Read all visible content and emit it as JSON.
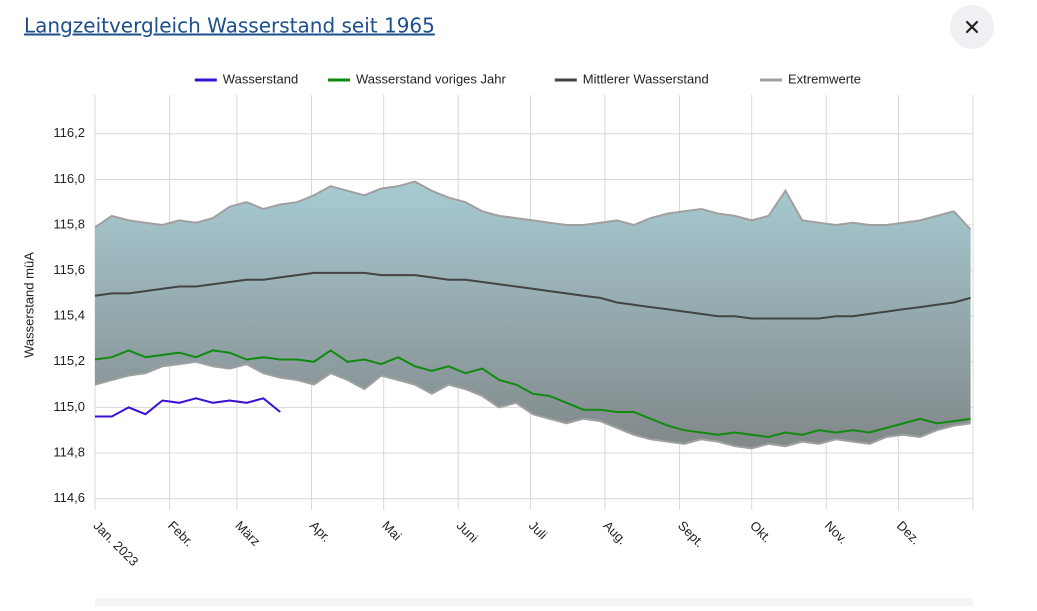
{
  "header": {
    "title": "Langzeitvergleich Wasserstand seit 1965"
  },
  "chart_data": {
    "type": "line",
    "ylabel": "Wasserstand müA",
    "ylim": [
      114.55,
      116.37
    ],
    "yticks": [
      {
        "value": 114.6,
        "label": "114,6"
      },
      {
        "value": 114.8,
        "label": "114,8"
      },
      {
        "value": 115.0,
        "label": "115,0"
      },
      {
        "value": 115.2,
        "label": "115,2"
      },
      {
        "value": 115.4,
        "label": "115,4"
      },
      {
        "value": 115.6,
        "label": "115,6"
      },
      {
        "value": 115.8,
        "label": "115,8"
      },
      {
        "value": 116.0,
        "label": "116,0"
      },
      {
        "value": 116.2,
        "label": "116,2"
      }
    ],
    "xlim": [
      0,
      365
    ],
    "xticks": [
      {
        "value": 0,
        "label": "Jan. 2023"
      },
      {
        "value": 31,
        "label": "Febr."
      },
      {
        "value": 59,
        "label": "März"
      },
      {
        "value": 90,
        "label": "Apr."
      },
      {
        "value": 120,
        "label": "Mai"
      },
      {
        "value": 151,
        "label": "Juni"
      },
      {
        "value": 181,
        "label": "Juli"
      },
      {
        "value": 212,
        "label": "Aug."
      },
      {
        "value": 243,
        "label": "Sept."
      },
      {
        "value": 273,
        "label": "Okt."
      },
      {
        "value": 304,
        "label": "Nov."
      },
      {
        "value": 334,
        "label": "Dez."
      },
      {
        "value": 365,
        "label": ""
      }
    ],
    "grid": true,
    "legend": "top",
    "x": [
      0,
      7,
      14,
      21,
      28,
      35,
      42,
      49,
      56,
      63,
      70,
      77,
      84,
      91,
      98,
      105,
      112,
      119,
      126,
      133,
      140,
      147,
      154,
      161,
      168,
      175,
      182,
      189,
      196,
      203,
      210,
      217,
      224,
      231,
      238,
      245,
      252,
      259,
      266,
      273,
      280,
      287,
      294,
      301,
      308,
      315,
      322,
      329,
      336,
      343,
      350,
      357,
      364
    ],
    "series": [
      {
        "name": "Wasserstand",
        "color": "#3a10d6",
        "values": [
          114.96,
          114.96,
          115.0,
          114.97,
          115.03,
          115.02,
          115.04,
          115.02,
          115.03,
          115.02,
          115.04,
          114.98,
          null,
          null,
          null,
          null,
          null,
          null,
          null,
          null,
          null,
          null,
          null,
          null,
          null,
          null,
          null,
          null,
          null,
          null,
          null,
          null,
          null,
          null,
          null,
          null,
          null,
          null,
          null,
          null,
          null,
          null,
          null,
          null,
          null,
          null,
          null,
          null,
          null,
          null,
          null,
          null,
          null
        ]
      },
      {
        "name": "Wasserstand voriges Jahr",
        "color": "#128a12",
        "values": [
          115.21,
          115.22,
          115.25,
          115.22,
          115.23,
          115.24,
          115.22,
          115.25,
          115.24,
          115.21,
          115.22,
          115.21,
          115.21,
          115.2,
          115.25,
          115.2,
          115.21,
          115.19,
          115.22,
          115.18,
          115.16,
          115.18,
          115.15,
          115.17,
          115.12,
          115.1,
          115.06,
          115.05,
          115.02,
          114.99,
          114.99,
          114.98,
          114.98,
          114.95,
          114.92,
          114.9,
          114.89,
          114.88,
          114.89,
          114.88,
          114.87,
          114.89,
          114.88,
          114.9,
          114.89,
          114.9,
          114.89,
          114.91,
          114.93,
          114.95,
          114.93,
          114.94,
          114.95
        ]
      },
      {
        "name": "Mittlerer Wasserstand",
        "color": "#444444",
        "values": [
          115.49,
          115.5,
          115.5,
          115.51,
          115.52,
          115.53,
          115.53,
          115.54,
          115.55,
          115.56,
          115.56,
          115.57,
          115.58,
          115.59,
          115.59,
          115.59,
          115.59,
          115.58,
          115.58,
          115.58,
          115.57,
          115.56,
          115.56,
          115.55,
          115.54,
          115.53,
          115.52,
          115.51,
          115.5,
          115.49,
          115.48,
          115.46,
          115.45,
          115.44,
          115.43,
          115.42,
          115.41,
          115.4,
          115.4,
          115.39,
          115.39,
          115.39,
          115.39,
          115.39,
          115.4,
          115.4,
          115.41,
          115.42,
          115.43,
          115.44,
          115.45,
          115.46,
          115.48
        ]
      },
      {
        "name": "Extremwerte",
        "color": "#a0a0a0",
        "fill_gradient": [
          "#b4e1ea",
          "#787878"
        ],
        "max": [
          115.79,
          115.84,
          115.82,
          115.81,
          115.8,
          115.82,
          115.81,
          115.83,
          115.88,
          115.9,
          115.87,
          115.89,
          115.9,
          115.93,
          115.97,
          115.95,
          115.93,
          115.96,
          115.97,
          115.99,
          115.95,
          115.92,
          115.9,
          115.86,
          115.84,
          115.83,
          115.82,
          115.81,
          115.8,
          115.8,
          115.81,
          115.82,
          115.8,
          115.83,
          115.85,
          115.86,
          115.87,
          115.85,
          115.84,
          115.82,
          115.84,
          115.95,
          115.82,
          115.81,
          115.8,
          115.81,
          115.8,
          115.8,
          115.81,
          115.82,
          115.84,
          115.86,
          115.78
        ],
        "min": [
          115.1,
          115.12,
          115.14,
          115.15,
          115.18,
          115.19,
          115.2,
          115.18,
          115.17,
          115.19,
          115.15,
          115.13,
          115.12,
          115.1,
          115.15,
          115.12,
          115.08,
          115.14,
          115.12,
          115.1,
          115.06,
          115.1,
          115.08,
          115.05,
          115.0,
          115.02,
          114.97,
          114.95,
          114.93,
          114.95,
          114.94,
          114.91,
          114.88,
          114.86,
          114.85,
          114.84,
          114.86,
          114.85,
          114.83,
          114.82,
          114.84,
          114.83,
          114.85,
          114.84,
          114.86,
          114.85,
          114.84,
          114.87,
          114.88,
          114.87,
          114.9,
          114.92,
          114.93
        ]
      }
    ]
  }
}
